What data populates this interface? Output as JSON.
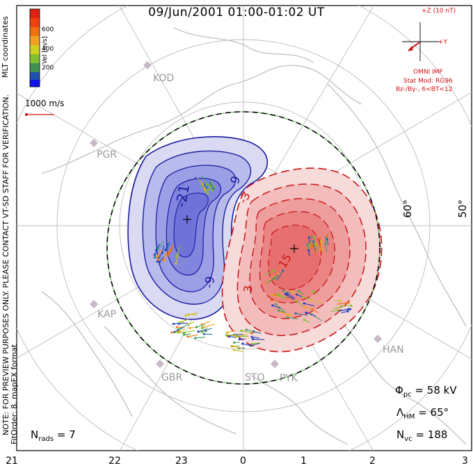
{
  "title": "09/Jun/2001 01:00-01:02 UT",
  "side_text": {
    "mlt_coordinates": "MLT coordinates",
    "preview_note": "NOTE: FOR PREVIEW PURPOSES ONLY. PLEASE CONTACT VT-SD STAFF FOR VERIFICATION.",
    "fit_order": "FitOrder: 8, mapEX format"
  },
  "colorbar": {
    "title": "Vel [m/s]",
    "ticks": [
      "600",
      "400",
      "200"
    ],
    "colors": [
      "#1020e0",
      "#2060b0",
      "#408050",
      "#60c030",
      "#a0d030",
      "#e0d020",
      "#f0a020",
      "#f06010",
      "#e02010"
    ]
  },
  "scale_vector": {
    "label": "1000 m/s",
    "color": "#d01010"
  },
  "imf": {
    "z_label": "+Z (10 nT)",
    "y_label": "+Y",
    "source": "OMNI IMF",
    "model": "Stat Mod: RG96",
    "condition": "Bz-/By-, 6<BT<12",
    "color": "#d01010"
  },
  "stations": [
    "KOD",
    "PGR",
    "KAP",
    "GBR",
    "STO",
    "PYK",
    "HAN"
  ],
  "latitude_labels": [
    "60°",
    "50°"
  ],
  "contour_labels": [
    "-21",
    "-9",
    "-3",
    "-9",
    "3",
    "15"
  ],
  "stats": {
    "phi_pc_symbol": "Φ",
    "phi_pc_sub": "pc",
    "phi_pc_value": "= 58 kV",
    "lambda_hm_symbol": "Λ",
    "lambda_hm_sub": "HM",
    "lambda_hm_value": "= 65°",
    "n_vc_symbol": "N",
    "n_vc_sub": "vc",
    "n_vc_value": "= 188",
    "n_rads_symbol": "N",
    "n_rads_sub": "rads",
    "n_rads_value": "= 7"
  },
  "mlt_axis": [
    "21",
    "22",
    "23",
    "0",
    "1",
    "2",
    "3"
  ],
  "colors": {
    "negative": "#1a1aa0",
    "positive": "#c81414",
    "boundary": "#40c040",
    "grid": "#bcbcbc",
    "coast": "#c0c0c0"
  }
}
